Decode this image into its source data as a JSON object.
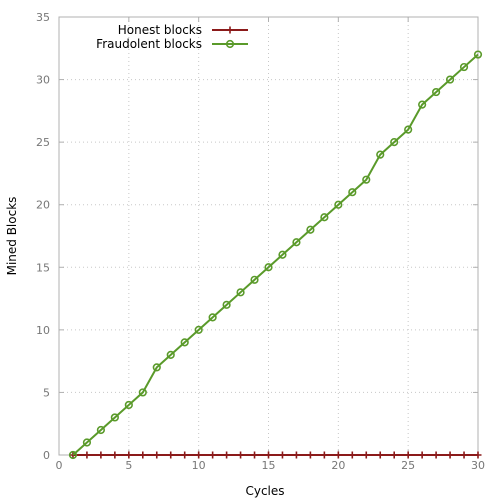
{
  "chart_data": {
    "type": "line",
    "xlabel": "Cycles",
    "ylabel": "Mined Blocks",
    "xlim": [
      0,
      30
    ],
    "ylim": [
      0,
      35
    ],
    "xticks": [
      0,
      5,
      10,
      15,
      20,
      25,
      30
    ],
    "yticks": [
      0,
      5,
      10,
      15,
      20,
      25,
      30,
      35
    ],
    "grid": true,
    "legend_position": "top-left",
    "x": [
      1,
      2,
      3,
      4,
      5,
      6,
      7,
      8,
      9,
      10,
      11,
      12,
      13,
      14,
      15,
      16,
      17,
      18,
      19,
      20,
      21,
      22,
      23,
      24,
      25,
      26,
      27,
      28,
      29,
      30
    ],
    "series": [
      {
        "name": "Honest blocks",
        "color": "#8b1a1a",
        "marker": "plus",
        "values": [
          0,
          0,
          0,
          0,
          0,
          0,
          0,
          0,
          0,
          0,
          0,
          0,
          0,
          0,
          0,
          0,
          0,
          0,
          0,
          0,
          0,
          0,
          0,
          0,
          0,
          0,
          0,
          0,
          0,
          0
        ]
      },
      {
        "name": "Fraudolent blocks",
        "color": "#5a9a2a",
        "marker": "circle",
        "values": [
          0,
          1,
          2,
          3,
          4,
          5,
          7,
          8,
          9,
          10,
          11,
          12,
          13,
          14,
          15,
          16,
          17,
          18,
          19,
          20,
          21,
          22,
          24,
          25,
          26,
          28,
          29,
          30,
          31,
          32
        ]
      }
    ]
  }
}
